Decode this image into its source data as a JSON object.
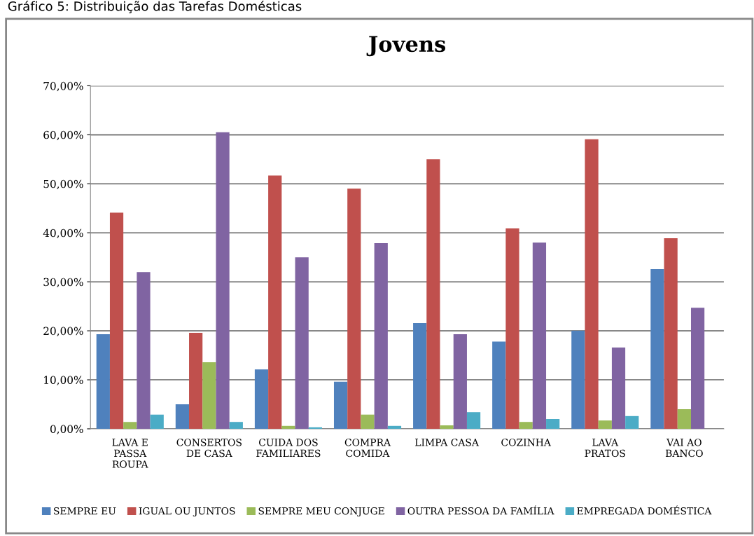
{
  "chart_data": {
    "type": "bar",
    "title": "Jovens",
    "annotations": [
      "Gráfico 5: Distribuição das Tarefas Domésticas"
    ],
    "categories": [
      "LAVA E\nPASSA\nROUPA",
      "CONSERTOS\nDE CASA",
      "CUIDA DOS\nFAMILIARES",
      "COMPRA\nCOMIDA",
      "LIMPA CASA",
      "COZINHA",
      "LAVA\nPRATOS",
      "VAI AO\nBANCO"
    ],
    "series": [
      {
        "name": "SEMPRE EU",
        "color": "#4f81bd",
        "values": [
          19.3,
          5.0,
          12.1,
          9.6,
          21.6,
          17.8,
          20.0,
          32.6
        ]
      },
      {
        "name": "IGUAL OU JUNTOS",
        "color": "#c0504d",
        "values": [
          44.1,
          19.6,
          51.7,
          49.0,
          55.0,
          40.9,
          59.1,
          38.9
        ]
      },
      {
        "name": "SEMPRE MEU CONJUGE",
        "color": "#9bbb59",
        "values": [
          1.4,
          13.6,
          0.6,
          2.9,
          0.7,
          1.4,
          1.7,
          4.0
        ]
      },
      {
        "name": "OUTRA PESSOA DA FAMÍLIA",
        "color": "#8064a2",
        "values": [
          32.0,
          60.5,
          35.0,
          37.9,
          19.3,
          38.0,
          16.6,
          24.7
        ]
      },
      {
        "name": "EMPREGADA DOMÉSTICA",
        "color": "#4bacc6",
        "values": [
          2.9,
          1.4,
          0.3,
          0.6,
          3.4,
          2.0,
          2.6,
          0.0
        ]
      }
    ],
    "ylim": [
      0,
      70
    ],
    "yticks": [
      {
        "value": 0,
        "label": "0,00%"
      },
      {
        "value": 10,
        "label": "10,00%"
      },
      {
        "value": 20,
        "label": "20,00%"
      },
      {
        "value": 30,
        "label": "30,00%"
      },
      {
        "value": 40,
        "label": "40,00%"
      },
      {
        "value": 50,
        "label": "50,00%"
      },
      {
        "value": 60,
        "label": "60,00%"
      },
      {
        "value": 70,
        "label": "70,00%"
      }
    ],
    "grid": "y",
    "legend": "bottom"
  }
}
